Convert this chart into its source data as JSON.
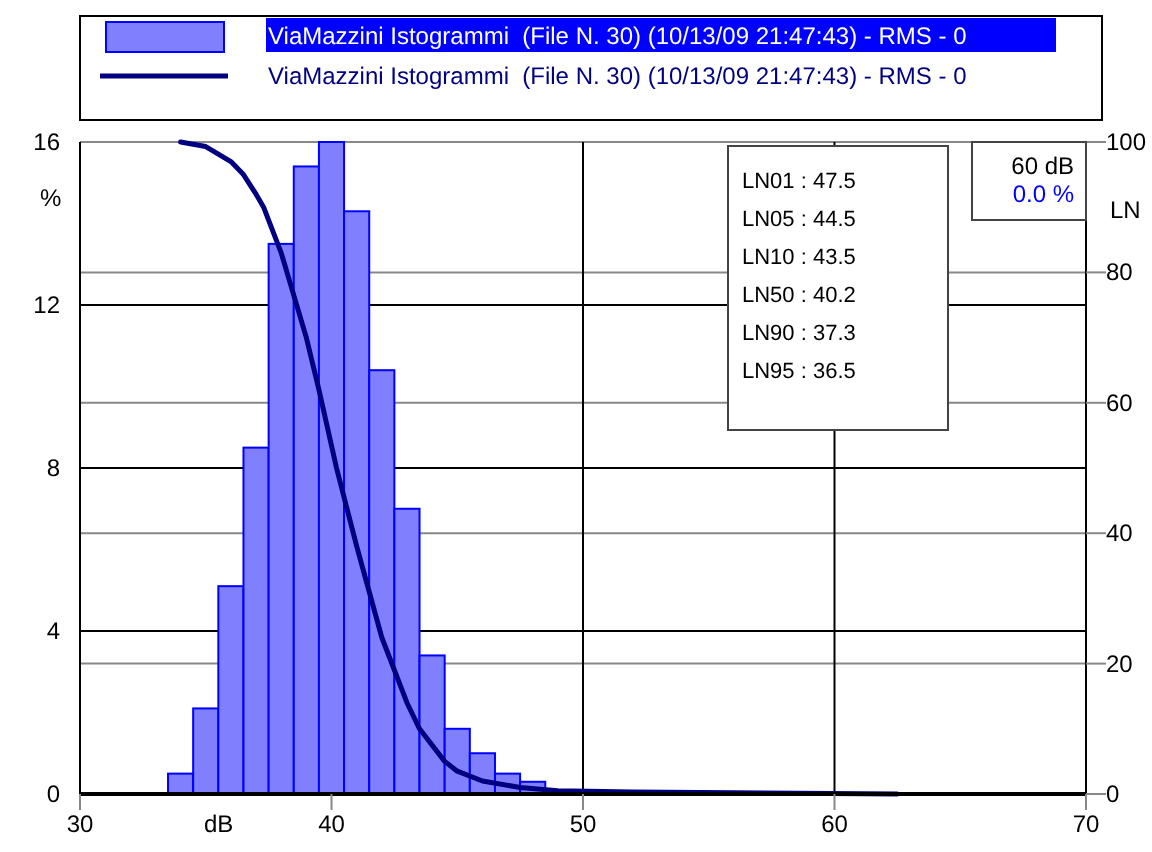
{
  "chart_data": {
    "type": "histogram",
    "xlabel": "dB",
    "ylabel": "%",
    "y2label": "LN",
    "xlim": [
      30,
      70
    ],
    "xticks": [
      30,
      40,
      50,
      60,
      70
    ],
    "ylim": [
      0,
      16
    ],
    "yticks": [
      0,
      4,
      8,
      12,
      16
    ],
    "y2lim": [
      0,
      100
    ],
    "y2ticks": [
      0,
      20,
      40,
      60,
      80,
      100
    ],
    "grid": true,
    "legend": "top",
    "bins": [
      33.5,
      34.5,
      35.5,
      36.5,
      37.5,
      38.5,
      39.5,
      40.5,
      41.5,
      42.5,
      43.5,
      44.5,
      45.5,
      46.5,
      47.5,
      48.5
    ],
    "series": [
      {
        "name": "ViaMazzini Istogrammi  (File N. 30) (10/13/09 21:47:43) - RMS - 0",
        "color": "#8080ff",
        "values": [
          0.5,
          2.1,
          5.1,
          8.5,
          13.5,
          15.4,
          16.0,
          14.3,
          10.4,
          7.0,
          3.4,
          1.6,
          1.0,
          0.5,
          0.3
        ]
      },
      {
        "type": "line",
        "axis": "y2",
        "name": "ViaMazzini Istogrammi  (File N. 30) (10/13/09 21:47:43) - RMS - 0",
        "color": "#000080",
        "x": [
          34,
          35,
          36,
          36.5,
          37,
          37.3,
          38,
          39,
          39.5,
          40.2,
          41,
          42,
          43,
          43.5,
          44.5,
          45,
          46,
          47.5,
          49,
          52,
          56,
          62.5
        ],
        "values": [
          100,
          99.3,
          97,
          95,
          92,
          90,
          83,
          70,
          62,
          50,
          38,
          24,
          14,
          10,
          5,
          3.5,
          2,
          1,
          0.5,
          0.3,
          0.2,
          0
        ]
      }
    ],
    "annotations": [
      "LN01 : 47.5",
      "LN05 : 44.5",
      "LN10 : 43.5",
      "LN50 : 40.2",
      "LN90 : 37.3",
      "LN95 : 36.5",
      "60 dB",
      "0.0 %"
    ]
  }
}
